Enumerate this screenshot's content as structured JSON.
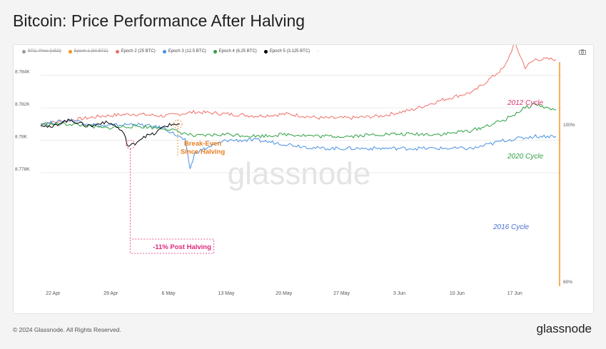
{
  "title": "Bitcoin: Price Performance After Halving",
  "legend": [
    {
      "label": "BTC: Price [USD]",
      "color": "#999999",
      "enabled": false
    },
    {
      "label": "Epoch 1 (50 BTC)",
      "color": "#f7931a",
      "enabled": false
    },
    {
      "label": "Epoch 2 (25 BTC)",
      "color": "#f0706a",
      "enabled": true
    },
    {
      "label": "Epoch 3 (12.5 BTC)",
      "color": "#4a90e2",
      "enabled": true
    },
    {
      "label": "Epoch 4 (6.25 BTC)",
      "color": "#2ea043",
      "enabled": true
    },
    {
      "label": "Epoch 5 (3.125 BTC)",
      "color": "#000000",
      "enabled": true
    }
  ],
  "legend_extra": "·",
  "watermark": "glassnode",
  "footer": "© 2024 Glassnode. All Rights Reserved.",
  "brand": "glassnode",
  "chart_data": {
    "type": "line",
    "x_ticks": [
      "22 Apr",
      "29 Apr",
      "6 May",
      "13 May",
      "20 May",
      "27 May",
      "3 Jun",
      "10 Jun",
      "17 Jun"
    ],
    "y_ticks_left": [
      "8.784K",
      "8.782K",
      "8.78K",
      "8.778K"
    ],
    "y_ticks_right": [
      "100%",
      "60%"
    ],
    "grid": true,
    "series": [
      {
        "name": "Epoch 2 (25 BTC)",
        "color": "#f0706a",
        "points": [
          [
            0,
            100
          ],
          [
            3,
            101
          ],
          [
            6,
            102
          ],
          [
            9,
            102.5
          ],
          [
            12,
            102
          ],
          [
            15,
            103
          ],
          [
            18,
            102.5
          ],
          [
            21,
            102
          ],
          [
            24,
            102.5
          ],
          [
            27,
            101.5
          ],
          [
            30,
            101.5
          ],
          [
            33,
            102
          ],
          [
            36,
            103.5
          ],
          [
            39,
            106
          ],
          [
            42,
            108
          ],
          [
            45,
            114
          ],
          [
            46,
            120
          ],
          [
            47,
            114
          ],
          [
            48,
            116
          ],
          [
            50,
            116
          ]
        ]
      },
      {
        "name": "Epoch 3 (12.5 BTC)",
        "color": "#4a90e2",
        "points": [
          [
            0,
            100
          ],
          [
            3,
            101
          ],
          [
            6,
            99.5
          ],
          [
            9,
            100
          ],
          [
            12,
            99
          ],
          [
            14,
            96
          ],
          [
            14.5,
            89
          ],
          [
            15,
            93
          ],
          [
            18,
            96
          ],
          [
            21,
            96
          ],
          [
            24,
            95
          ],
          [
            27,
            94
          ],
          [
            30,
            94
          ],
          [
            33,
            94
          ],
          [
            36,
            94
          ],
          [
            39,
            94
          ],
          [
            42,
            94
          ],
          [
            45,
            96
          ],
          [
            48,
            97
          ],
          [
            50,
            97
          ]
        ]
      },
      {
        "name": "Epoch 4 (6.25 BTC)",
        "color": "#2ea043",
        "points": [
          [
            0,
            100
          ],
          [
            3,
            100
          ],
          [
            6,
            99
          ],
          [
            9,
            99.5
          ],
          [
            12,
            99
          ],
          [
            15,
            97
          ],
          [
            18,
            97.5
          ],
          [
            21,
            97
          ],
          [
            24,
            97.5
          ],
          [
            27,
            97
          ],
          [
            30,
            97
          ],
          [
            33,
            97.5
          ],
          [
            36,
            97.5
          ],
          [
            39,
            97.5
          ],
          [
            42,
            98.5
          ],
          [
            45,
            101
          ],
          [
            47,
            104
          ],
          [
            48,
            105
          ],
          [
            49,
            104
          ],
          [
            50,
            103.5
          ]
        ]
      },
      {
        "name": "Epoch 5 (3.125 BTC)",
        "color": "#000000",
        "points": [
          [
            0,
            100
          ],
          [
            1,
            99
          ],
          [
            2,
            100.5
          ],
          [
            3,
            101
          ],
          [
            4,
            100
          ],
          [
            5,
            99.5
          ],
          [
            6,
            100.5
          ],
          [
            7,
            100
          ],
          [
            8,
            98
          ],
          [
            8.5,
            94.5
          ],
          [
            9,
            95
          ],
          [
            10,
            97
          ],
          [
            11,
            97.5
          ],
          [
            12,
            99.5
          ],
          [
            13,
            100
          ],
          [
            13.5,
            100
          ]
        ]
      }
    ],
    "annotations": [
      {
        "text": "2012 Cycle",
        "color": "#d6336c"
      },
      {
        "text": "2020 Cycle",
        "color": "#2ea043"
      },
      {
        "text": "2016 Cycle",
        "color": "#4a6fd1"
      },
      {
        "text": "Break-Even\nSince Halving",
        "color": "#e67e22"
      },
      {
        "text": "-11% Post Halving",
        "color": "#e0287a"
      }
    ],
    "ylim_right_pct": [
      60,
      116
    ]
  }
}
